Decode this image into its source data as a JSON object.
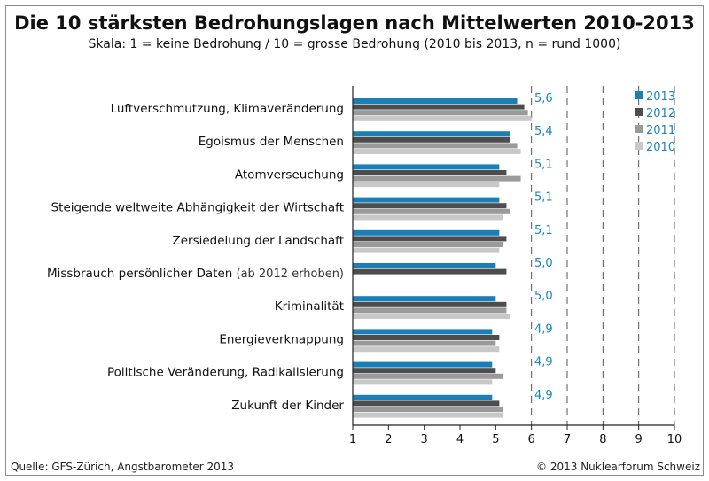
{
  "header": {
    "title": "Die 10 stärksten Bedrohungslagen nach Mittelwerten 2010-2013",
    "subtitle": "Skala: 1 = keine Bedrohung / 10 = grosse Bedrohung (2010 bis 2013, n = rund 1000)"
  },
  "footer": {
    "source": "Quelle: GFS-Zürich, Angstbarometer 2013",
    "copyright": "© 2013 Nuklearforum Schweiz"
  },
  "chart_data": {
    "type": "bar",
    "orientation": "horizontal",
    "title": "Die 10 stärksten Bedrohungslagen nach Mittelwerten 2010-2013",
    "subtitle": "Skala: 1 = keine Bedrohung / 10 = grosse Bedrohung (2010 bis 2013, n = rund 1000)",
    "categories": [
      {
        "label": "Luftverschmutzung, Klimaveränderung",
        "note": ""
      },
      {
        "label": "Egoismus der Menschen",
        "note": ""
      },
      {
        "label": "Atomverseuchung",
        "note": ""
      },
      {
        "label": "Steigende weltweite Abhängigkeit der Wirtschaft",
        "note": ""
      },
      {
        "label": "Zersiedelung der Landschaft",
        "note": ""
      },
      {
        "label": "Missbrauch persönlicher Daten",
        "note": "(ab 2012 erhoben)"
      },
      {
        "label": "Kriminalität",
        "note": ""
      },
      {
        "label": "Energieverknappung",
        "note": ""
      },
      {
        "label": "Politische Veränderung, Radikalisierung",
        "note": ""
      },
      {
        "label": "Zukunft der Kinder",
        "note": ""
      }
    ],
    "series": [
      {
        "name": "2013",
        "color": "#1a7fb6",
        "values": [
          5.6,
          5.4,
          5.1,
          5.1,
          5.1,
          5.0,
          5.0,
          4.9,
          4.9,
          4.9
        ]
      },
      {
        "name": "2012",
        "color": "#4d4d4d",
        "values": [
          5.8,
          5.4,
          5.3,
          5.3,
          5.3,
          5.3,
          5.3,
          5.1,
          5.0,
          5.1
        ]
      },
      {
        "name": "2011",
        "color": "#9a9a9a",
        "values": [
          5.9,
          5.6,
          5.7,
          5.4,
          5.2,
          null,
          5.3,
          5.0,
          5.2,
          5.2
        ]
      },
      {
        "name": "2010",
        "color": "#c8c8c8",
        "values": [
          6.0,
          5.7,
          5.1,
          5.2,
          5.1,
          null,
          5.4,
          5.1,
          4.9,
          5.2
        ]
      }
    ],
    "value_labels": [
      "5,6",
      "5,4",
      "5,1",
      "5,1",
      "5,1",
      "5,0",
      "5,0",
      "4,9",
      "4,9",
      "4,9"
    ],
    "xlim": [
      1,
      10
    ],
    "xticks": [
      "1",
      "2",
      "3",
      "4",
      "5",
      "6",
      "7",
      "8",
      "9",
      "10"
    ],
    "xlabel": "",
    "ylabel": "",
    "grid": "dashed vertical lines at 6 to 10",
    "legend_position": "top-right"
  }
}
